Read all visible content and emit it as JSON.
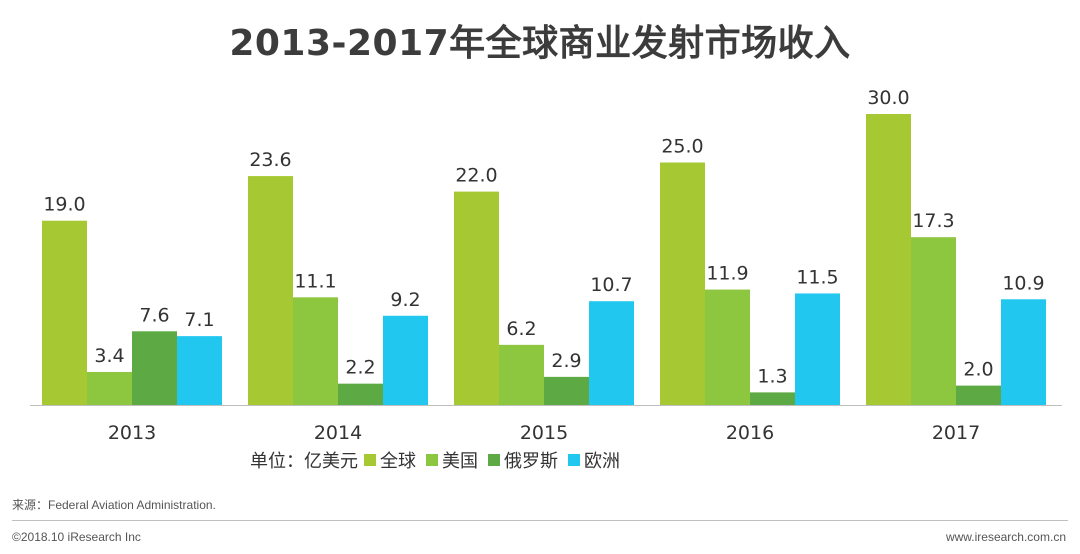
{
  "chart_data": {
    "type": "bar",
    "title": "2013-2017年全球商业发射市场收入",
    "categories": [
      "2013",
      "2014",
      "2015",
      "2016",
      "2017"
    ],
    "series": [
      {
        "name": "全球",
        "color": "#a6c933",
        "values": [
          19.0,
          23.6,
          22.0,
          25.0,
          30.0
        ]
      },
      {
        "name": "美国",
        "color": "#8dc63f",
        "values": [
          3.4,
          11.1,
          6.2,
          11.9,
          17.3
        ]
      },
      {
        "name": "俄罗斯",
        "color": "#5daa45",
        "values": [
          7.6,
          2.2,
          2.9,
          1.3,
          2.0
        ]
      },
      {
        "name": "欧洲",
        "color": "#22c7f0",
        "values": [
          7.1,
          9.2,
          10.7,
          11.5,
          10.9
        ]
      }
    ],
    "unit_label": "单位：亿美元",
    "xlabel": "",
    "ylabel": "",
    "ylim": [
      0,
      30
    ],
    "grid": false,
    "legend_position": "bottom"
  },
  "source": "来源：Federal Aviation Administration.",
  "copyright": "©2018.10 iResearch Inc",
  "website": "www.iresearch.com.cn"
}
